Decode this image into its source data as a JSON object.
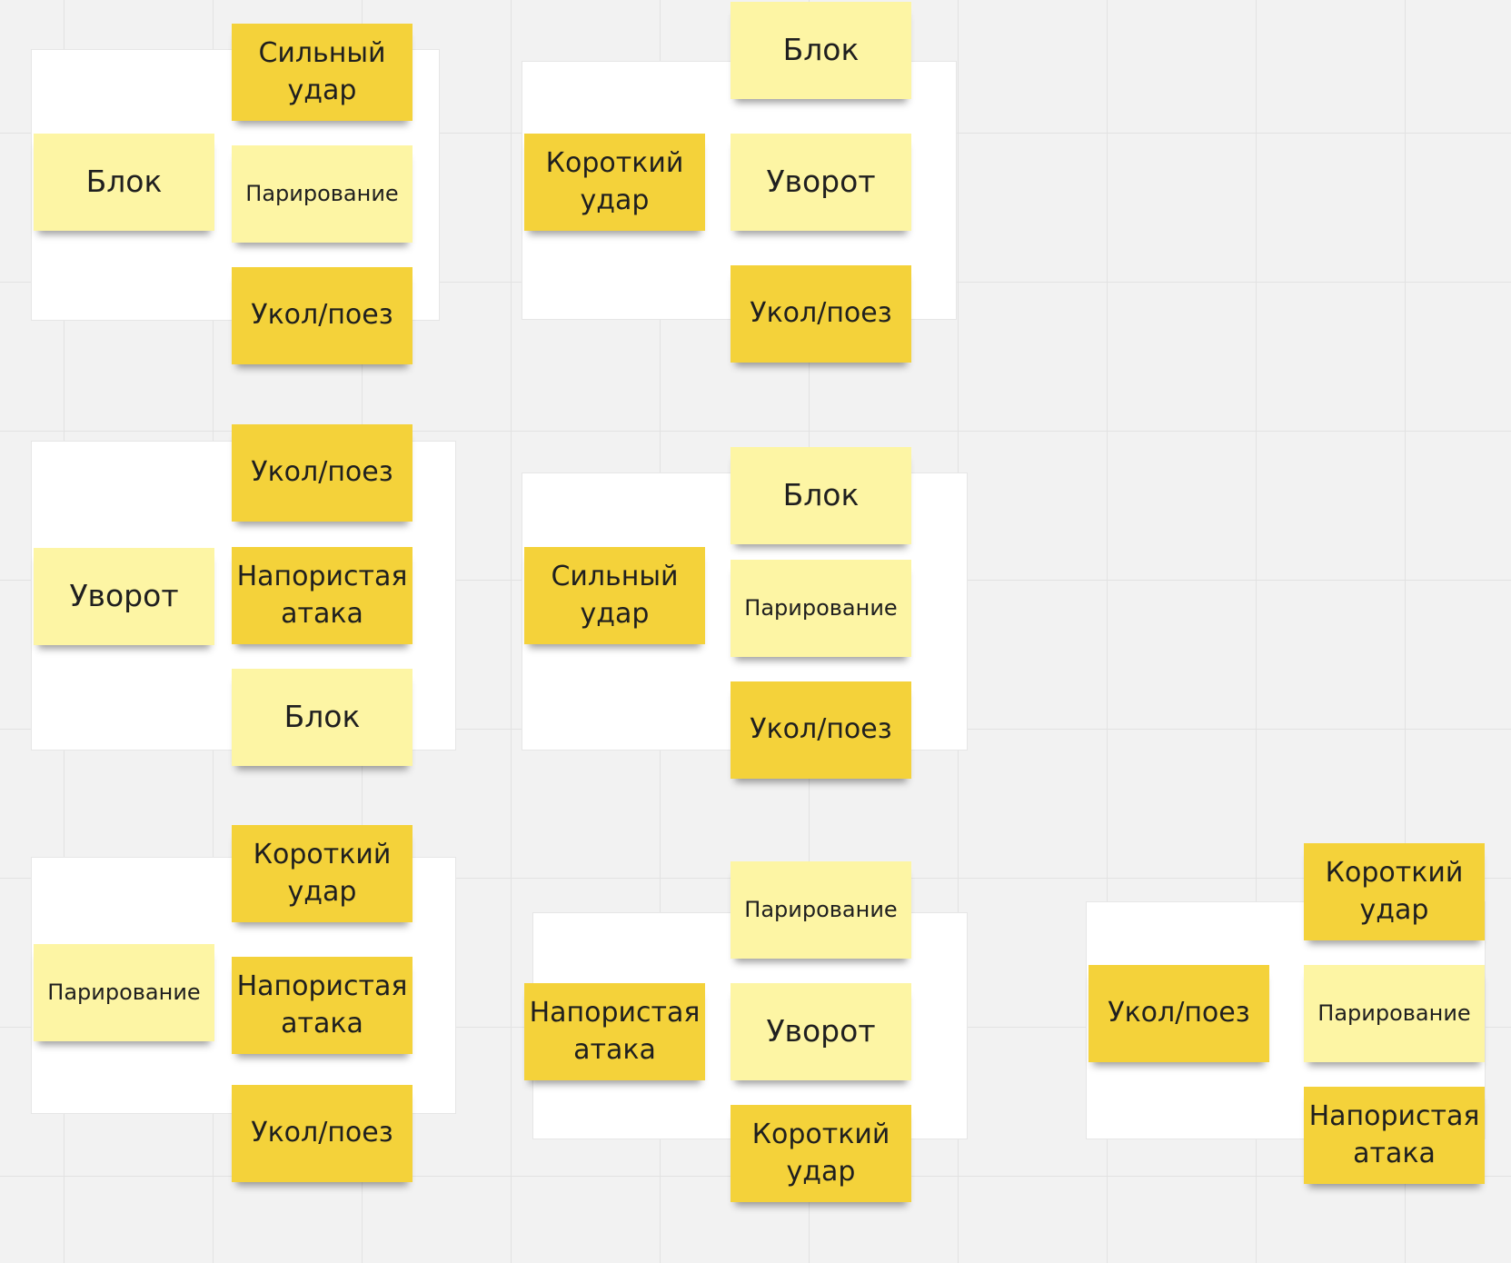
{
  "colors": {
    "dark_note": "#f4d23a",
    "light_note": "#fdf5a4",
    "frame": "#ffffff",
    "canvas": "#f2f2f2"
  },
  "groups": [
    {
      "source": {
        "label": "Блок",
        "tone": "light"
      },
      "responses": [
        {
          "label": "Сильный удар",
          "tone": "dark"
        },
        {
          "label": "Парирование",
          "tone": "light"
        },
        {
          "label": "Укол/поез",
          "tone": "dark"
        }
      ]
    },
    {
      "source": {
        "label": "Короткий удар",
        "tone": "dark"
      },
      "responses": [
        {
          "label": "Блок",
          "tone": "light"
        },
        {
          "label": "Уворот",
          "tone": "light"
        },
        {
          "label": "Укол/поез",
          "tone": "dark"
        }
      ]
    },
    {
      "source": {
        "label": "Уворот",
        "tone": "light"
      },
      "responses": [
        {
          "label": "Укол/поез",
          "tone": "dark"
        },
        {
          "label": "Напористая атака",
          "tone": "dark"
        },
        {
          "label": "Блок",
          "tone": "light"
        }
      ]
    },
    {
      "source": {
        "label": "Сильный удар",
        "tone": "dark"
      },
      "responses": [
        {
          "label": "Блок",
          "tone": "light"
        },
        {
          "label": "Парирование",
          "tone": "light"
        },
        {
          "label": "Укол/поез",
          "tone": "dark"
        }
      ]
    },
    {
      "source": {
        "label": "Парирование",
        "tone": "light"
      },
      "responses": [
        {
          "label": "Короткий удар",
          "tone": "dark"
        },
        {
          "label": "Напористая атака",
          "tone": "dark"
        },
        {
          "label": "Укол/поез",
          "tone": "dark"
        }
      ]
    },
    {
      "source": {
        "label": "Напористая атака",
        "tone": "dark"
      },
      "responses": [
        {
          "label": "Парирование",
          "tone": "light"
        },
        {
          "label": "Уворот",
          "tone": "light"
        },
        {
          "label": "Короткий удар",
          "tone": "dark"
        }
      ]
    },
    {
      "source": {
        "label": "Укол/поез",
        "tone": "dark"
      },
      "responses": [
        {
          "label": "Короткий удар",
          "tone": "dark"
        },
        {
          "label": "Парирование",
          "tone": "light"
        },
        {
          "label": "Напористая атака",
          "tone": "dark"
        }
      ]
    }
  ]
}
